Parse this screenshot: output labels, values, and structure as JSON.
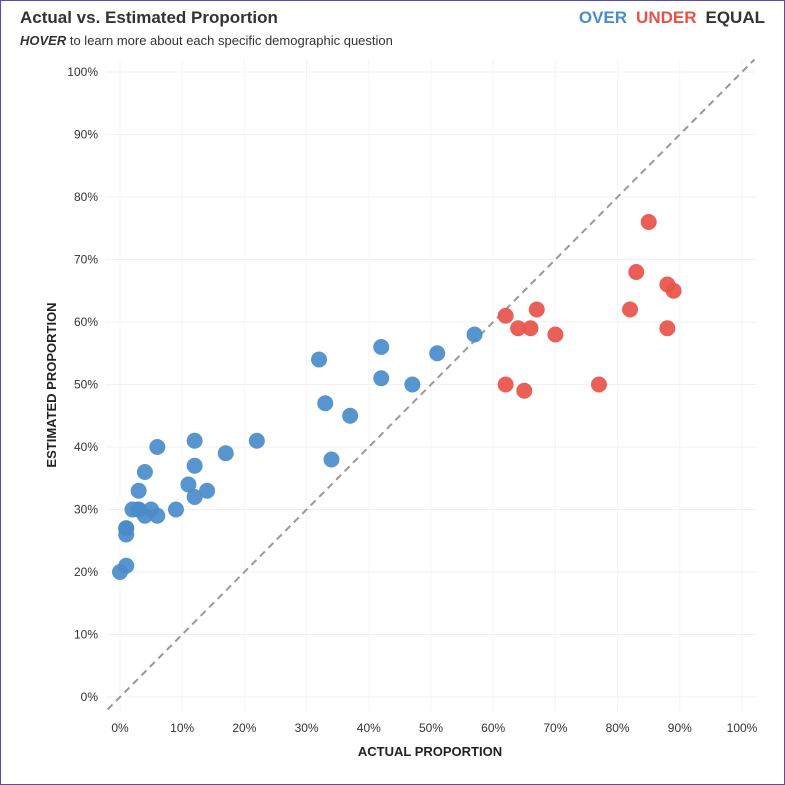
{
  "header": {
    "title": "Actual vs. Estimated Proportion",
    "subtitle_emphasis": "HOVER",
    "subtitle_rest": " to learn more about each specific demographic question"
  },
  "legend": [
    {
      "label": "OVER",
      "color": "#4a8cca"
    },
    {
      "label": "UNDER",
      "color": "#e8524a"
    },
    {
      "label": "EQUAL",
      "color": "#333333"
    }
  ],
  "chart_data": {
    "type": "scatter",
    "title": "Actual vs. Estimated Proportion",
    "xlabel": "ACTUAL PROPORTION",
    "ylabel": "ESTIMATED PROPORTION",
    "xlim": [
      0,
      100
    ],
    "ylim": [
      0,
      100
    ],
    "x_ticks": [
      "0%",
      "10%",
      "20%",
      "30%",
      "40%",
      "50%",
      "60%",
      "70%",
      "80%",
      "90%",
      "100%"
    ],
    "y_ticks": [
      "0%",
      "10%",
      "20%",
      "30%",
      "40%",
      "50%",
      "60%",
      "70%",
      "80%",
      "90%",
      "100%"
    ],
    "reference_line": "y = x (dashed)",
    "grid": true,
    "series": [
      {
        "name": "OVER",
        "color": "#4a8cca",
        "points": [
          [
            0,
            20
          ],
          [
            1,
            21
          ],
          [
            1,
            26
          ],
          [
            1,
            27
          ],
          [
            1,
            27
          ],
          [
            2,
            30
          ],
          [
            3,
            30
          ],
          [
            3,
            30
          ],
          [
            3,
            33
          ],
          [
            4,
            29
          ],
          [
            4,
            36
          ],
          [
            5,
            30
          ],
          [
            6,
            29
          ],
          [
            6,
            40
          ],
          [
            9,
            30
          ],
          [
            11,
            34
          ],
          [
            12,
            32
          ],
          [
            12,
            37
          ],
          [
            12,
            41
          ],
          [
            14,
            33
          ],
          [
            17,
            39
          ],
          [
            22,
            41
          ],
          [
            32,
            54
          ],
          [
            33,
            47
          ],
          [
            34,
            38
          ],
          [
            37,
            45
          ],
          [
            42,
            51
          ],
          [
            42,
            56
          ],
          [
            47,
            50
          ],
          [
            51,
            55
          ],
          [
            57,
            58
          ]
        ]
      },
      {
        "name": "UNDER",
        "color": "#e8524a",
        "points": [
          [
            62,
            61
          ],
          [
            62,
            50
          ],
          [
            64,
            59
          ],
          [
            65,
            49
          ],
          [
            66,
            59
          ],
          [
            67,
            62
          ],
          [
            70,
            58
          ],
          [
            77,
            50
          ],
          [
            82,
            62
          ],
          [
            83,
            68
          ],
          [
            85,
            76
          ],
          [
            88,
            66
          ],
          [
            88,
            59
          ],
          [
            89,
            65
          ]
        ]
      }
    ]
  }
}
